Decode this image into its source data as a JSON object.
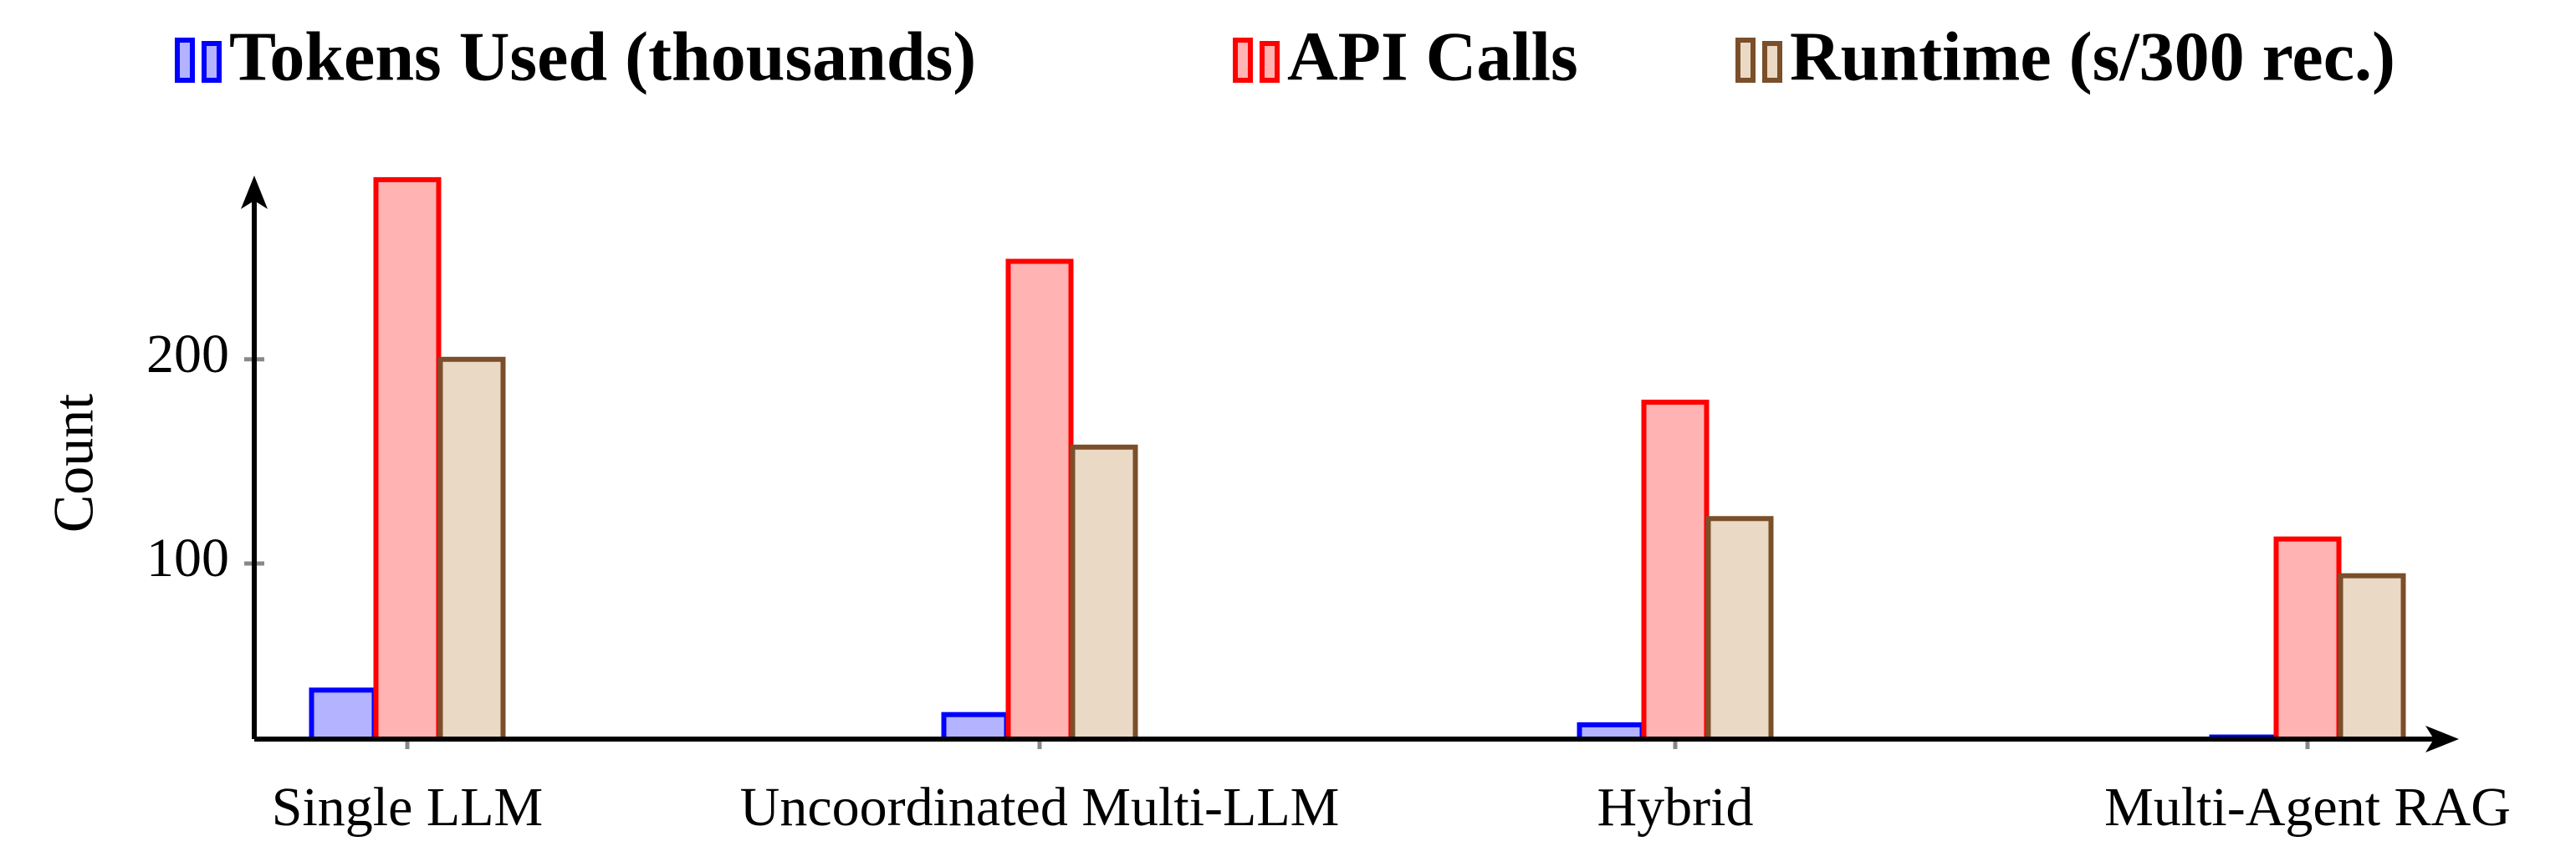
{
  "chart_data": {
    "type": "bar",
    "categories": [
      "Single LLM",
      "Uncoordinated Multi-LLM",
      "Hybrid",
      "Multi-Agent RAG"
    ],
    "y_label": "Count",
    "series": [
      {
        "name": "Tokens Used (thousands)",
        "color": "#0000ff",
        "fill": "#b3b3ff",
        "values": [
          38,
          26,
          21,
          15
        ]
      },
      {
        "name": "API Calls",
        "color": "#ff0000",
        "fill": "#ffb3b3",
        "values": [
          288,
          248,
          179,
          112
        ]
      },
      {
        "name": "Runtime (s/300 rec.)",
        "color": "#7a4f2a",
        "fill": "#ead9c4",
        "values": [
          200,
          157,
          122,
          94
        ]
      }
    ],
    "ylim": [
      14,
      290
    ],
    "yticks": [
      100,
      200
    ],
    "grid": false
  }
}
